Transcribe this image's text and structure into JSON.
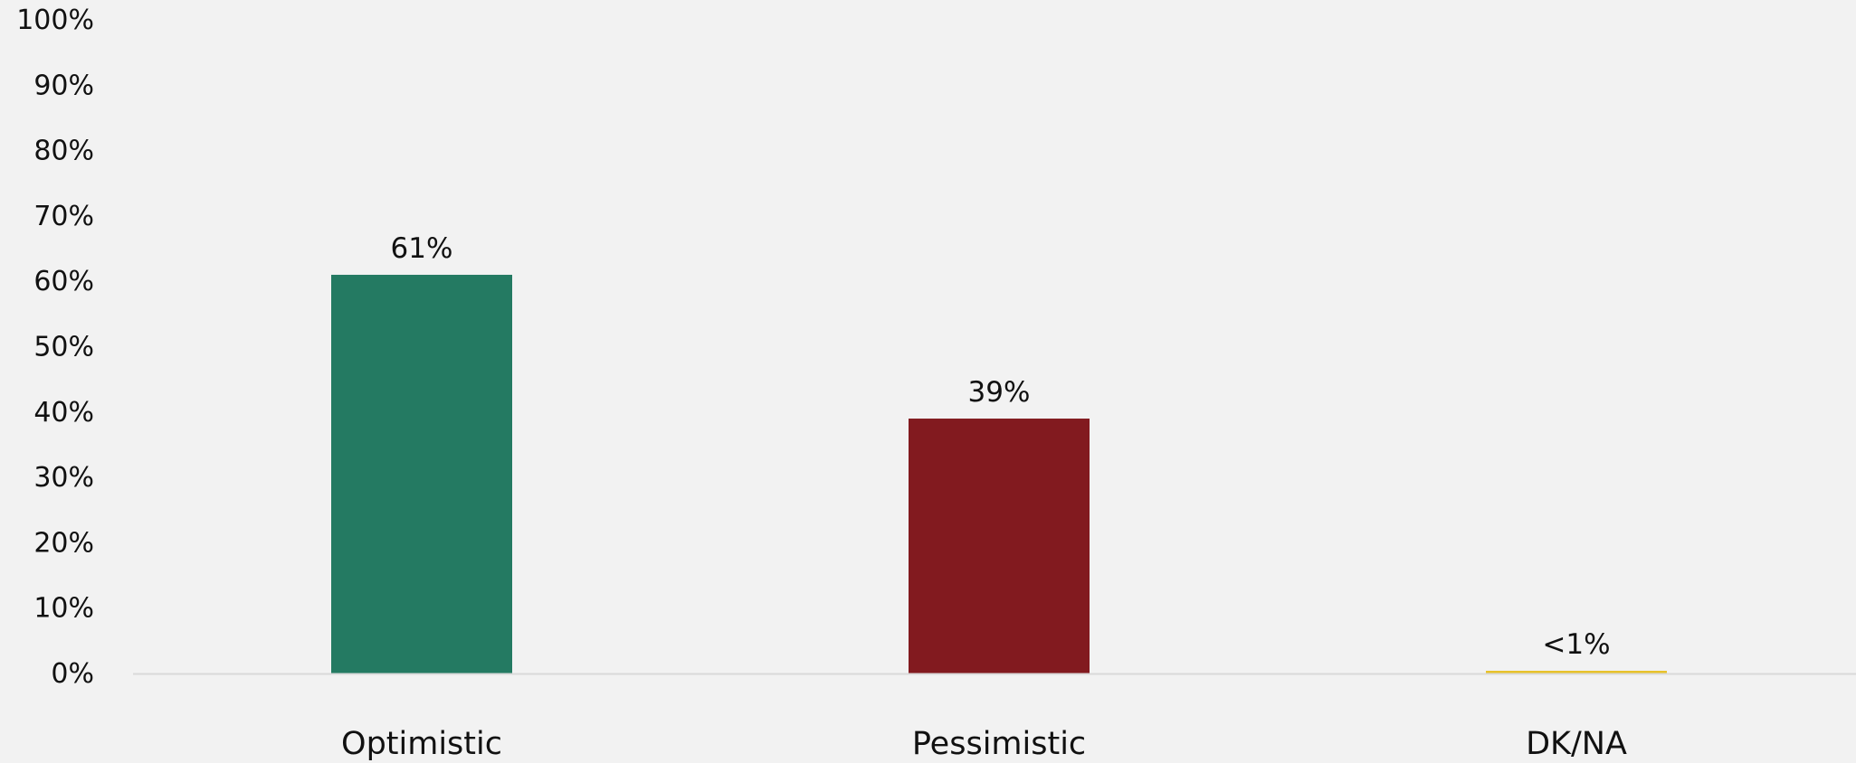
{
  "chart_data": {
    "type": "bar",
    "categories": [
      "Optimistic",
      "Pessimistic",
      "DK/NA"
    ],
    "values": [
      61,
      39,
      0.4
    ],
    "data_labels": [
      "61%",
      "39%",
      "<1%"
    ],
    "colors": [
      "#247a62",
      "#821a1f",
      "#e8c22b"
    ],
    "ylim": [
      0,
      100
    ],
    "yticks": [
      0,
      10,
      20,
      30,
      40,
      50,
      60,
      70,
      80,
      90,
      100
    ],
    "ytick_labels": [
      "0%",
      "10%",
      "20%",
      "30%",
      "40%",
      "50%",
      "60%",
      "70%",
      "80%",
      "90%",
      "100%"
    ],
    "grid": false,
    "title": "",
    "xlabel": "",
    "ylabel": ""
  },
  "style": {
    "background": "#f2f2f2",
    "axis_color": "#d9d9d9",
    "text_color": "#111111"
  }
}
